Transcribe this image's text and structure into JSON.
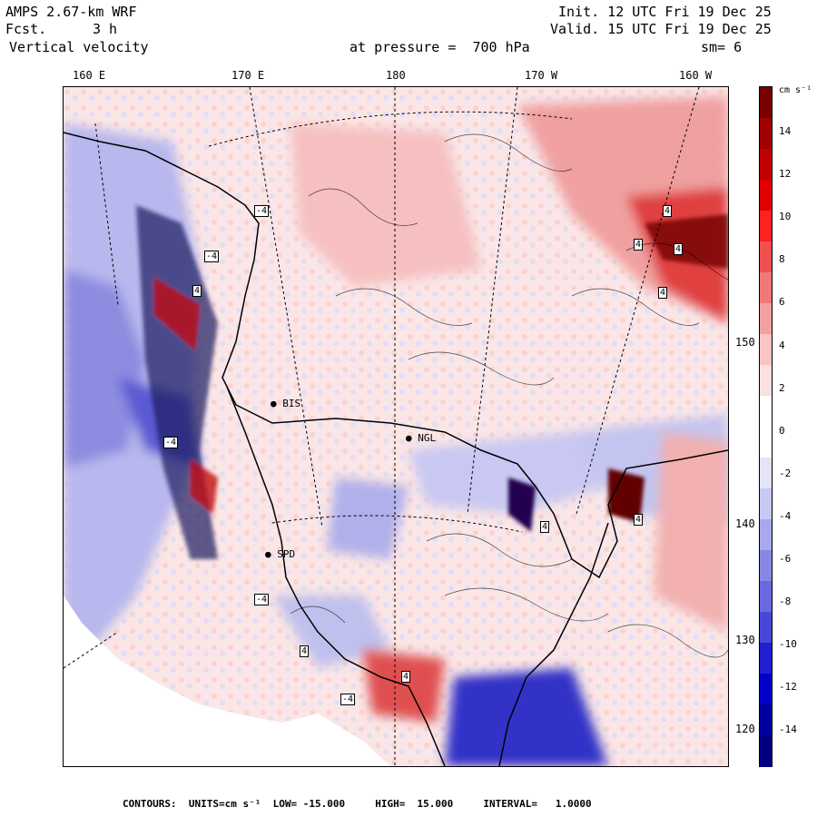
{
  "header": {
    "model": "AMPS 2.67-km WRF",
    "fcst_label": "Fcst.",
    "fcst_value": "3 h",
    "field": "Vertical velocity",
    "init": "Init. 12 UTC Fri 19 Dec 25",
    "valid": "Valid. 15 UTC Fri 19 Dec 25",
    "level": "at pressure =  700 hPa",
    "smooth": "sm= 6"
  },
  "axes": {
    "longitudes": [
      "160 E",
      "170 E",
      "180",
      "170 W",
      "160 W"
    ],
    "latitudes": [
      "150 W",
      "140 W",
      "130 W",
      "120 W"
    ]
  },
  "colorbar": {
    "units": "cm s⁻¹",
    "labels": [
      "14",
      "12",
      "10",
      "8",
      "6",
      "4",
      "2",
      "0",
      "-2",
      "-4",
      "-6",
      "-8",
      "-10",
      "-12",
      "-14"
    ],
    "colors": [
      "#7a0000",
      "#a00000",
      "#c00000",
      "#e00000",
      "#ff2020",
      "#f05050",
      "#f07878",
      "#f4a0a0",
      "#f8c4c4",
      "#fbe0e0",
      "#ffffff",
      "#ffffff",
      "#e4e4f8",
      "#c8c8f4",
      "#a8a8ee",
      "#8888e4",
      "#6a6ade",
      "#4848d8",
      "#2020d0",
      "#0000c8",
      "#0000a0",
      "#000080"
    ]
  },
  "stations": [
    {
      "name": "BIS"
    },
    {
      "name": "NGL"
    },
    {
      "name": "SPD"
    }
  ],
  "extrema": [
    "-4",
    "-4",
    "4",
    "4",
    "4",
    "4",
    "4",
    "-4",
    "4",
    "4",
    "-4",
    "-4",
    "4",
    "4"
  ],
  "footer": {
    "contours_label": "CONTOURS:",
    "units_label": "UNITS=cm s⁻¹",
    "low": "LOW= -15.000",
    "high": "HIGH=  15.000",
    "interval": "INTERVAL=   1.0000"
  }
}
